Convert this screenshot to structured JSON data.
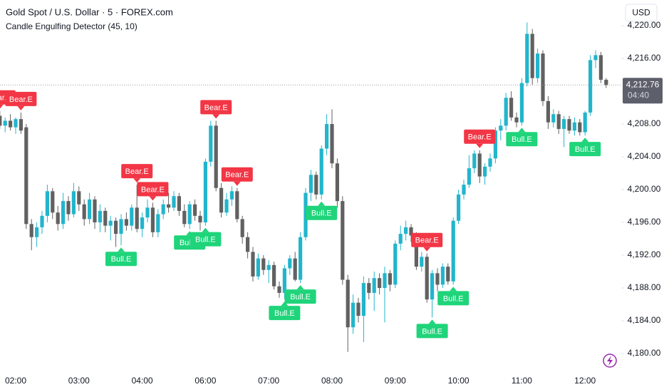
{
  "chart_data": {
    "type": "candlestick",
    "title": "Gold Spot / U.S. Dollar · 5 · FOREX.com",
    "subtitle": "Candle Engulfing Detector (45, 10)",
    "currency": "USD",
    "last_price": {
      "value": 4212.76,
      "label": "4,212.76"
    },
    "countdown": "04:40",
    "up_color": "#22b5cc",
    "down_color": "#616161",
    "bull_color": "#1fd47a",
    "bear_color": "#f23645",
    "ylim": [
      4178.35,
      4223.13
    ],
    "yticks": [
      {
        "value": 4180,
        "label": "4,180.00"
      },
      {
        "value": 4184,
        "label": "4,184.00"
      },
      {
        "value": 4188,
        "label": "4,188.00"
      },
      {
        "value": 4192,
        "label": "4,192.00"
      },
      {
        "value": 4196,
        "label": "4,196.00"
      },
      {
        "value": 4200,
        "label": "4,200.00"
      },
      {
        "value": 4204,
        "label": "4,204.00"
      },
      {
        "value": 4208,
        "label": "4,208.00"
      },
      {
        "value": 4212,
        "label": "4,212.00"
      },
      {
        "value": 4216,
        "label": "4,216.00"
      },
      {
        "value": 4220,
        "label": "4,220.00"
      }
    ],
    "categories": [
      null,
      null,
      null,
      "02:00",
      null,
      null,
      null,
      null,
      null,
      null,
      null,
      null,
      null,
      null,
      null,
      "03:00",
      null,
      null,
      null,
      null,
      null,
      null,
      null,
      null,
      null,
      null,
      null,
      "04:00",
      null,
      null,
      null,
      null,
      null,
      null,
      null,
      null,
      null,
      null,
      null,
      "06:00",
      null,
      null,
      null,
      null,
      null,
      null,
      null,
      null,
      null,
      null,
      null,
      "07:00",
      null,
      null,
      null,
      null,
      null,
      null,
      null,
      null,
      null,
      null,
      null,
      "08:00",
      null,
      null,
      null,
      null,
      null,
      null,
      null,
      null,
      null,
      null,
      null,
      "09:00",
      null,
      null,
      null,
      null,
      null,
      null,
      null,
      null,
      null,
      null,
      null,
      "10:00",
      null,
      null,
      null,
      null,
      null,
      null,
      null,
      null,
      null,
      null,
      null,
      "11:00",
      null,
      null,
      null,
      null,
      null,
      null,
      null,
      null,
      null,
      null,
      null,
      "12:00",
      null,
      null,
      null,
      null
    ],
    "signals": [
      "Bear.E",
      null,
      null,
      null,
      "Bear.E",
      null,
      null,
      null,
      null,
      null,
      null,
      null,
      null,
      null,
      null,
      null,
      null,
      null,
      null,
      null,
      null,
      null,
      null,
      "Bull.E",
      null,
      null,
      "Bear.E",
      null,
      null,
      "Bear.E",
      null,
      null,
      null,
      null,
      null,
      null,
      "Bull.E",
      null,
      null,
      "Bull.E",
      null,
      "Bear.E",
      null,
      null,
      null,
      "Bear.E",
      null,
      null,
      null,
      null,
      null,
      null,
      null,
      null,
      "Bull.E",
      null,
      null,
      "Bull.E",
      null,
      null,
      null,
      "Bull.E",
      null,
      null,
      null,
      null,
      null,
      null,
      null,
      null,
      null,
      null,
      null,
      null,
      null,
      null,
      null,
      null,
      null,
      null,
      null,
      "Bear.E",
      "Bull.E",
      null,
      null,
      null,
      "Bull.E",
      null,
      null,
      null,
      null,
      "Bear.E",
      null,
      null,
      null,
      null,
      null,
      null,
      null,
      "Bull.E",
      null,
      null,
      null,
      null,
      null,
      null,
      null,
      null,
      null,
      null,
      null,
      "Bull.E",
      null,
      null,
      null,
      null
    ],
    "ohlc": [
      [
        4209.0,
        4209.6,
        4207.4,
        4207.8
      ],
      [
        4207.8,
        4208.8,
        4207.0,
        4208.4
      ],
      [
        4208.4,
        4209.2,
        4207.2,
        4207.6
      ],
      [
        4207.6,
        4208.8,
        4206.8,
        4208.6
      ],
      [
        4208.6,
        4209.4,
        4206.8,
        4207.2
      ],
      [
        4207.6,
        4208.0,
        4195.2,
        4195.8
      ],
      [
        4195.8,
        4196.4,
        4192.6,
        4194.2
      ],
      [
        4194.2,
        4196.0,
        4193.0,
        4195.4
      ],
      [
        4195.4,
        4197.4,
        4194.6,
        4196.8
      ],
      [
        4196.8,
        4200.6,
        4196.0,
        4199.8
      ],
      [
        4199.8,
        4200.2,
        4196.4,
        4197.2
      ],
      [
        4197.2,
        4198.0,
        4195.0,
        4195.8
      ],
      [
        4195.8,
        4199.6,
        4195.2,
        4198.6
      ],
      [
        4198.6,
        4199.2,
        4196.2,
        4197.0
      ],
      [
        4197.0,
        4200.8,
        4196.6,
        4199.8
      ],
      [
        4199.8,
        4200.4,
        4197.4,
        4198.2
      ],
      [
        4198.2,
        4198.8,
        4195.6,
        4196.4
      ],
      [
        4196.4,
        4199.6,
        4195.8,
        4198.8
      ],
      [
        4198.8,
        4199.2,
        4195.2,
        4196.0
      ],
      [
        4196.0,
        4198.2,
        4194.8,
        4197.4
      ],
      [
        4197.4,
        4197.8,
        4194.8,
        4195.6
      ],
      [
        4195.6,
        4196.8,
        4193.8,
        4196.2
      ],
      [
        4196.2,
        4196.6,
        4193.0,
        4194.6
      ],
      [
        4194.6,
        4197.0,
        4193.2,
        4196.4
      ],
      [
        4196.4,
        4197.2,
        4195.0,
        4195.6
      ],
      [
        4195.6,
        4198.2,
        4195.0,
        4197.8
      ],
      [
        4197.8,
        4200.6,
        4194.8,
        4195.2
      ],
      [
        4195.2,
        4197.2,
        4194.2,
        4196.6
      ],
      [
        4196.6,
        4198.8,
        4196.0,
        4197.8
      ],
      [
        4197.8,
        4198.4,
        4194.2,
        4194.8
      ],
      [
        4194.8,
        4197.6,
        4194.2,
        4197.0
      ],
      [
        4197.0,
        4198.8,
        4196.4,
        4198.2
      ],
      [
        4198.2,
        4199.6,
        4197.2,
        4197.8
      ],
      [
        4197.8,
        4199.8,
        4197.4,
        4199.2
      ],
      [
        4199.2,
        4199.6,
        4196.8,
        4197.4
      ],
      [
        4197.4,
        4198.2,
        4195.4,
        4195.8
      ],
      [
        4195.8,
        4198.6,
        4195.2,
        4198.2
      ],
      [
        4198.2,
        4198.8,
        4196.2,
        4196.8
      ],
      [
        4196.8,
        4197.4,
        4195.0,
        4196.0
      ],
      [
        4196.0,
        4203.8,
        4195.6,
        4203.4
      ],
      [
        4203.4,
        4208.4,
        4202.8,
        4207.8
      ],
      [
        4207.8,
        4208.4,
        4199.8,
        4200.2
      ],
      [
        4200.2,
        4200.8,
        4196.6,
        4197.2
      ],
      [
        4197.2,
        4199.6,
        4196.8,
        4198.8
      ],
      [
        4198.8,
        4200.4,
        4198.0,
        4199.8
      ],
      [
        4199.8,
        4200.2,
        4196.0,
        4196.4
      ],
      [
        4196.4,
        4196.8,
        4193.4,
        4194.2
      ],
      [
        4194.2,
        4194.8,
        4191.6,
        4192.4
      ],
      [
        4192.4,
        4193.0,
        4188.8,
        4189.4
      ],
      [
        4189.4,
        4192.2,
        4189.0,
        4191.6
      ],
      [
        4191.6,
        4192.0,
        4189.6,
        4190.2
      ],
      [
        4190.2,
        4191.4,
        4188.6,
        4190.8
      ],
      [
        4190.8,
        4191.2,
        4187.8,
        4188.2
      ],
      [
        4188.2,
        4188.8,
        4186.8,
        4187.4
      ],
      [
        4187.4,
        4190.8,
        4186.6,
        4190.4
      ],
      [
        4190.4,
        4192.0,
        4189.6,
        4191.6
      ],
      [
        4191.6,
        4192.4,
        4188.8,
        4189.0
      ],
      [
        4189.0,
        4194.8,
        4188.6,
        4194.2
      ],
      [
        4194.2,
        4200.2,
        4193.8,
        4199.6
      ],
      [
        4199.6,
        4202.4,
        4198.6,
        4201.8
      ],
      [
        4201.8,
        4202.2,
        4198.8,
        4199.4
      ],
      [
        4199.4,
        4205.4,
        4198.8,
        4205.0
      ],
      [
        4205.0,
        4209.2,
        4204.2,
        4208.0
      ],
      [
        4208.0,
        4209.8,
        4202.6,
        4203.2
      ],
      [
        4203.2,
        4203.8,
        4197.8,
        4198.6
      ],
      [
        4198.6,
        4199.2,
        4188.4,
        4189.0
      ],
      [
        4189.0,
        4189.6,
        4180.2,
        4183.2
      ],
      [
        4183.2,
        4187.2,
        4182.4,
        4186.2
      ],
      [
        4186.2,
        4186.8,
        4183.8,
        4184.6
      ],
      [
        4184.6,
        4189.4,
        4181.4,
        4188.6
      ],
      [
        4188.6,
        4189.2,
        4186.6,
        4187.4
      ],
      [
        4187.4,
        4190.0,
        4185.2,
        4189.2
      ],
      [
        4189.2,
        4189.8,
        4187.2,
        4188.0
      ],
      [
        4188.0,
        4190.6,
        4183.8,
        4189.8
      ],
      [
        4189.8,
        4190.2,
        4187.6,
        4188.4
      ],
      [
        4188.4,
        4193.8,
        4188.0,
        4193.4
      ],
      [
        4193.4,
        4195.6,
        4192.6,
        4194.6
      ],
      [
        4194.6,
        4196.2,
        4193.8,
        4195.4
      ],
      [
        4195.4,
        4195.8,
        4193.6,
        4194.4
      ],
      [
        4194.4,
        4194.8,
        4190.2,
        4190.6
      ],
      [
        4190.6,
        4192.4,
        4190.0,
        4191.8
      ],
      [
        4191.8,
        4192.2,
        4186.2,
        4186.6
      ],
      [
        4186.6,
        4190.2,
        4184.4,
        4189.8
      ],
      [
        4189.8,
        4190.4,
        4187.6,
        4188.4
      ],
      [
        4188.4,
        4191.0,
        4188.0,
        4190.6
      ],
      [
        4190.6,
        4191.0,
        4188.4,
        4188.8
      ],
      [
        4188.8,
        4196.6,
        4188.4,
        4196.2
      ],
      [
        4196.2,
        4200.0,
        4195.8,
        4199.4
      ],
      [
        4199.4,
        4201.2,
        4198.8,
        4200.6
      ],
      [
        4200.6,
        4204.2,
        4200.2,
        4202.6
      ],
      [
        4202.6,
        4204.8,
        4202.0,
        4204.4
      ],
      [
        4204.4,
        4204.8,
        4200.8,
        4201.6
      ],
      [
        4201.6,
        4203.2,
        4200.6,
        4202.8
      ],
      [
        4202.8,
        4204.4,
        4202.2,
        4203.8
      ],
      [
        4203.8,
        4207.6,
        4203.2,
        4207.2
      ],
      [
        4207.2,
        4208.6,
        4206.0,
        4207.8
      ],
      [
        4207.8,
        4211.8,
        4207.2,
        4211.2
      ],
      [
        4211.2,
        4212.0,
        4208.4,
        4208.8
      ],
      [
        4208.8,
        4209.4,
        4207.6,
        4208.2
      ],
      [
        4208.2,
        4213.6,
        4207.8,
        4213.0
      ],
      [
        4213.0,
        4220.4,
        4212.6,
        4219.0
      ],
      [
        4219.0,
        4219.6,
        4212.8,
        4213.6
      ],
      [
        4213.6,
        4217.2,
        4213.0,
        4216.6
      ],
      [
        4216.6,
        4217.0,
        4210.2,
        4210.8
      ],
      [
        4210.8,
        4211.4,
        4207.4,
        4208.2
      ],
      [
        4208.2,
        4209.8,
        4207.6,
        4209.2
      ],
      [
        4209.2,
        4209.6,
        4206.8,
        4207.4
      ],
      [
        4207.4,
        4209.0,
        4205.2,
        4208.6
      ],
      [
        4208.6,
        4209.0,
        4206.8,
        4207.2
      ],
      [
        4207.2,
        4208.8,
        4206.6,
        4208.2
      ],
      [
        4208.2,
        4208.6,
        4206.6,
        4207.0
      ],
      [
        4207.0,
        4209.6,
        4206.6,
        4209.4
      ],
      [
        4209.4,
        4216.4,
        4209.0,
        4215.8
      ],
      [
        4215.8,
        4217.0,
        4214.8,
        4216.4
      ],
      [
        4216.4,
        4216.8,
        4213.0,
        4213.4
      ],
      [
        4213.4,
        4213.6,
        4212.4,
        4212.76
      ]
    ]
  }
}
